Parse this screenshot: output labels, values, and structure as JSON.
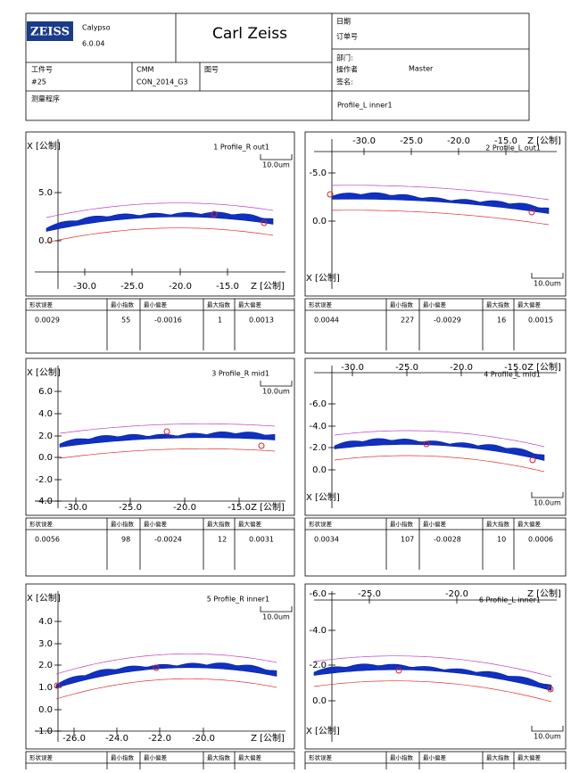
{
  "header": {
    "logo": "ZEISS",
    "software": "Calypso",
    "version": "6.0.04",
    "company": "Carl Zeiss",
    "date_label": "日期",
    "order_label": "订单号",
    "part_no_label": "工件号",
    "part_no": "#25",
    "machine": "CMM",
    "machine_id": "CON_2014_G3",
    "drawing_label": "图号",
    "department_label": "部门:",
    "operator_label": "操作者",
    "operator": "Master",
    "signature_label": "签名:",
    "program_label": "测量程序",
    "program": "Profile_L inner1"
  },
  "stat_headers": [
    "形状误差",
    "最小指数",
    "最小偏差",
    "最大指数",
    "最大偏差"
  ],
  "panels": [
    {
      "title": "1   Profile_R out1",
      "scale": "10.0um",
      "y_label": "X [公制]",
      "x_label": "Z [公制]",
      "y_ticks": [
        "5.0",
        "0.0"
      ],
      "x_ticks": [
        "-30.0",
        "-25.0",
        "-20.0",
        "-15.0"
      ],
      "stats": [
        "0.0029",
        "55",
        "-0.0016",
        "1",
        "0.0013"
      ]
    },
    {
      "title": "2   Profile_L out1",
      "scale": "10.0um",
      "y_label": "X [公制]",
      "x_label": "Z [公制]",
      "y_ticks": [
        "-5.0",
        "0.0"
      ],
      "x_ticks": [
        "-30.0",
        "-25.0",
        "-20.0",
        "-15.0"
      ],
      "stats": [
        "0.0044",
        "227",
        "-0.0029",
        "16",
        "0.0015"
      ]
    },
    {
      "title": "3   Profile_R mid1",
      "scale": "10.0um",
      "y_label": "X [公制]",
      "x_label": "Z [公制]",
      "y_ticks": [
        "6.0",
        "4.0",
        "2.0",
        "0.0",
        "-2.0",
        "-4.0"
      ],
      "x_ticks": [
        "-30.0",
        "-25.0",
        "-20.0",
        "-15.0"
      ],
      "stats": [
        "0.0056",
        "98",
        "-0.0024",
        "12",
        "0.0031"
      ]
    },
    {
      "title": "4   Profile_L mid1",
      "scale": "10.0um",
      "y_label": "X [公制]",
      "x_label": "Z [公制]",
      "y_ticks": [
        "-6.0",
        "-4.0",
        "-2.0",
        "0.0"
      ],
      "x_ticks": [
        "-30.0",
        "-25.0",
        "-20.0",
        "-15.0"
      ],
      "stats": [
        "0.0034",
        "107",
        "-0.0028",
        "10",
        "0.0006"
      ]
    },
    {
      "title": "5   Profile_R inner1",
      "scale": "10.0um",
      "y_label": "X [公制]",
      "x_label": "Z [公制]",
      "y_ticks": [
        "4.0",
        "3.0",
        "2.0",
        "1.0",
        "0.0",
        "-1.0"
      ],
      "x_ticks": [
        "-26.0",
        "-24.0",
        "-22.0",
        "-20.0"
      ]
    },
    {
      "title": "6   Profile_L inner1",
      "scale": "10.0um",
      "y_label": "X [公制]",
      "x_label": "Z [公制]",
      "y_ticks": [
        "-6.0",
        "-4.0",
        "-2.0",
        "0.0"
      ],
      "x_ticks": [
        "-25.0",
        "-20.0"
      ]
    }
  ]
}
